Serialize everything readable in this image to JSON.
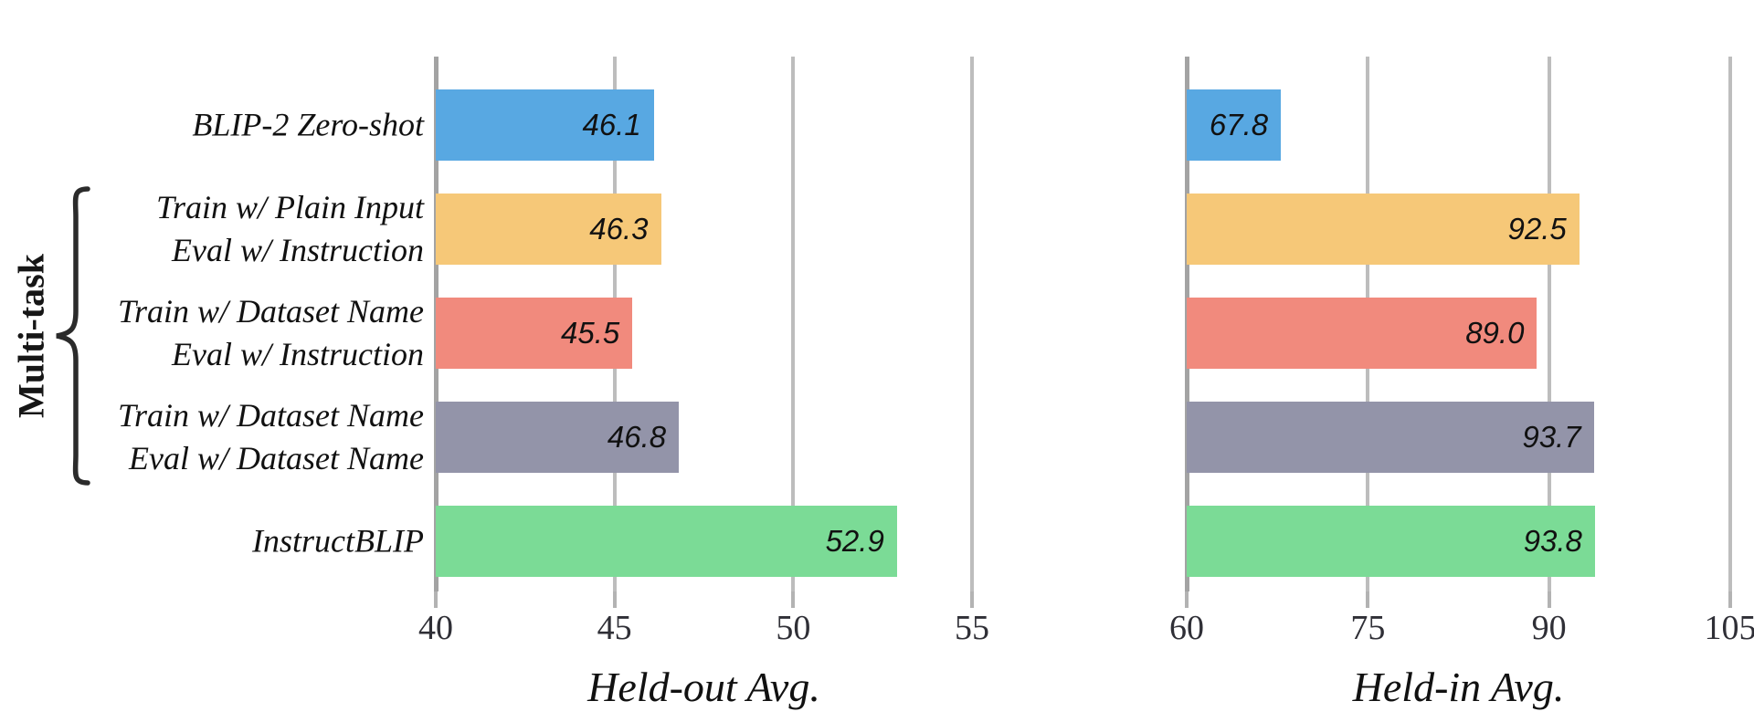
{
  "figure": {
    "background": "#ffffff",
    "group_label": "Multi-task"
  },
  "categories": [
    [
      "BLIP-2 Zero-shot"
    ],
    [
      "Train w/ Plain Input",
      "Eval w/ Instruction"
    ],
    [
      "Train w/ Dataset Name",
      "Eval w/ Instruction"
    ],
    [
      "Train w/ Dataset Name",
      "Eval w/ Dataset Name"
    ],
    [
      "InstructBLIP"
    ]
  ],
  "chart_data": [
    {
      "type": "bar",
      "orientation": "horizontal",
      "title": "Held-out Avg.",
      "xlabel": "Held-out Avg.",
      "ylabel": "",
      "xlim": [
        40,
        55
      ],
      "xticks": [
        40,
        45,
        50,
        55
      ],
      "grid": true,
      "legend": "none",
      "categories": [
        "BLIP-2 Zero-shot",
        "Train w/ Plain Input / Eval w/ Instruction",
        "Train w/ Dataset Name / Eval w/ Instruction",
        "Train w/ Dataset Name / Eval w/ Dataset Name",
        "InstructBLIP"
      ],
      "values": [
        46.1,
        46.3,
        45.5,
        46.8,
        52.9
      ],
      "value_labels": [
        "46.1",
        "46.3",
        "45.5",
        "46.8",
        "52.9"
      ],
      "bar_colors": [
        "#58A8E2",
        "#F6C878",
        "#F18A7D",
        "#9394A9",
        "#7BDB96"
      ]
    },
    {
      "type": "bar",
      "orientation": "horizontal",
      "title": "Held-in Avg.",
      "xlabel": "Held-in Avg.",
      "ylabel": "",
      "xlim": [
        60,
        105
      ],
      "xticks": [
        60,
        75,
        90,
        105
      ],
      "grid": true,
      "legend": "none",
      "categories": [
        "BLIP-2 Zero-shot",
        "Train w/ Plain Input / Eval w/ Instruction",
        "Train w/ Dataset Name / Eval w/ Instruction",
        "Train w/ Dataset Name / Eval w/ Dataset Name",
        "InstructBLIP"
      ],
      "values": [
        67.8,
        92.5,
        89.0,
        93.7,
        93.8
      ],
      "value_labels": [
        "67.8",
        "92.5",
        "89.0",
        "93.7",
        "93.8"
      ],
      "bar_colors": [
        "#58A8E2",
        "#F6C878",
        "#F18A7D",
        "#9394A9",
        "#7BDB96"
      ]
    }
  ],
  "style_colors": {
    "spine": "#a3a3a3",
    "gridline": "#bdbdbd",
    "tick": "#b3b3b3",
    "text": "#111111"
  }
}
